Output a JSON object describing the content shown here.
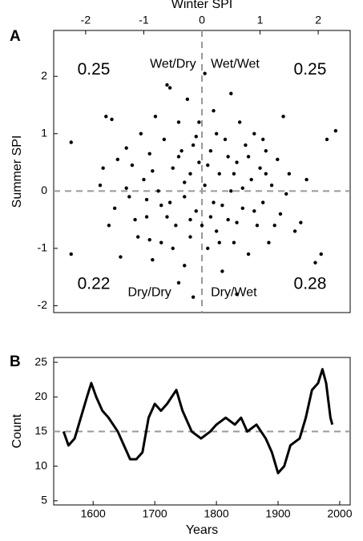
{
  "chart_data": [
    {
      "type": "scatter",
      "panel_label": "A",
      "x_label": "Winter SPI",
      "y_label": "Summer SPI",
      "x_axis_position": "top",
      "xlim": [
        -2.55,
        2.55
      ],
      "ylim": [
        -2.12,
        2.8
      ],
      "xticks": [
        -2,
        -1,
        0,
        1,
        2
      ],
      "yticks": [
        -2,
        -1,
        0,
        1,
        2
      ],
      "hlines": [
        0
      ],
      "vlines": [
        0
      ],
      "reference_color": "#999999",
      "color": "#000000",
      "annotations": [
        "0.25",
        "Wet/Dry",
        "Wet/Wet",
        "0.25",
        "0.22",
        "Dry/Dry",
        "Dry/Wet",
        "0.28"
      ],
      "x": [
        -2.25,
        -2.25,
        -1.65,
        -1.55,
        -1.7,
        -1.75,
        -1.5,
        -1.6,
        -1.4,
        -1.3,
        -1.25,
        -1.2,
        -1.1,
        -1.05,
        -1.0,
        -0.95,
        -0.9,
        -0.85,
        -0.8,
        -0.75,
        -0.7,
        -0.65,
        -0.6,
        -0.55,
        -0.55,
        -0.5,
        -0.45,
        -0.4,
        -0.4,
        -0.35,
        -0.3,
        -0.3,
        -0.25,
        -0.2,
        -0.2,
        -0.15,
        -0.1,
        -0.1,
        -0.05,
        0.0,
        0.05,
        0.05,
        0.1,
        0.15,
        0.2,
        0.2,
        0.25,
        0.3,
        0.35,
        0.4,
        0.45,
        0.5,
        0.5,
        0.55,
        0.6,
        0.6,
        0.65,
        0.7,
        0.75,
        0.8,
        0.85,
        0.9,
        0.95,
        1.0,
        1.05,
        1.1,
        1.15,
        1.2,
        1.3,
        1.35,
        1.4,
        1.45,
        1.5,
        1.6,
        1.7,
        1.8,
        1.95,
        2.05,
        2.3,
        2.15,
        -1.45,
        -0.95,
        -0.6,
        -0.3,
        0.1,
        0.35,
        0.7,
        1.05,
        -0.85,
        -0.5,
        0.25,
        0.9,
        -1.15,
        0.45,
        -0.2,
        0.15,
        0.6,
        -0.7,
        -0.05,
        1.25,
        -1.3,
        0.8,
        -0.4,
        0.3,
        -0.9,
        1.1,
        -0.15,
        0.55
      ],
      "values": [
        0.85,
        -1.1,
        1.3,
        1.25,
        0.4,
        0.1,
        -0.3,
        -0.6,
        -1.15,
        0.75,
        -0.1,
        0.45,
        -0.8,
        1.0,
        0.2,
        -0.45,
        0.65,
        -1.2,
        1.3,
        0.0,
        -0.9,
        0.9,
        1.85,
        1.8,
        -0.2,
        0.4,
        -0.6,
        1.2,
        -1.6,
        0.7,
        -0.1,
        -1.3,
        1.6,
        0.3,
        -0.8,
        -1.85,
        0.95,
        -0.35,
        0.5,
        -0.6,
        2.05,
        0.1,
        -1.0,
        0.7,
        -0.2,
        1.4,
        -0.7,
        0.3,
        -1.4,
        0.9,
        -0.5,
        1.7,
        0.0,
        -0.9,
        -1.8,
        0.5,
        1.2,
        -0.3,
        0.8,
        -1.1,
        0.2,
        1.0,
        -0.6,
        0.4,
        -0.2,
        0.7,
        -0.9,
        0.1,
        0.55,
        -0.4,
        1.3,
        -0.05,
        0.3,
        -0.7,
        -0.55,
        0.2,
        -1.25,
        -1.1,
        1.05,
        0.9,
        0.55,
        -0.15,
        -0.45,
        0.15,
        0.45,
        -0.25,
        0.05,
        0.9,
        0.35,
        -1.0,
        1.0,
        -0.35,
        -0.5,
        0.6,
        -0.5,
        -0.45,
        -0.55,
        -0.25,
        1.2,
        -0.6,
        0.05,
        0.6,
        0.6,
        -0.9,
        -0.85,
        0.3,
        0.8,
        0.3
      ]
    },
    {
      "type": "line",
      "panel_label": "B",
      "x_label": "Years",
      "y_label": "Count",
      "x_axis_position": "bottom",
      "xlim": [
        1536,
        2017
      ],
      "ylim": [
        4.4,
        25.7
      ],
      "xticks": [
        1600,
        1700,
        1800,
        1900,
        2000
      ],
      "yticks": [
        5,
        10,
        15,
        20,
        25
      ],
      "hlines": [
        15
      ],
      "vlines": [],
      "reference_color": "#999999",
      "color": "#000000",
      "annotations": [],
      "x": [
        1552,
        1560,
        1570,
        1580,
        1590,
        1597,
        1605,
        1615,
        1625,
        1640,
        1650,
        1660,
        1670,
        1680,
        1690,
        1700,
        1710,
        1720,
        1735,
        1745,
        1760,
        1775,
        1790,
        1800,
        1815,
        1830,
        1840,
        1850,
        1865,
        1880,
        1890,
        1900,
        1910,
        1920,
        1935,
        1945,
        1955,
        1965,
        1972,
        1978,
        1985,
        1988
      ],
      "values": [
        15,
        13,
        14,
        17,
        20,
        22,
        20,
        18,
        17,
        15,
        13,
        11,
        11,
        12,
        17,
        19,
        18,
        19,
        21,
        18,
        15,
        14,
        15,
        16,
        17,
        16,
        17,
        15,
        16,
        14,
        12,
        9,
        10,
        13,
        14,
        17,
        21,
        22,
        24,
        22,
        17,
        16
      ]
    }
  ]
}
